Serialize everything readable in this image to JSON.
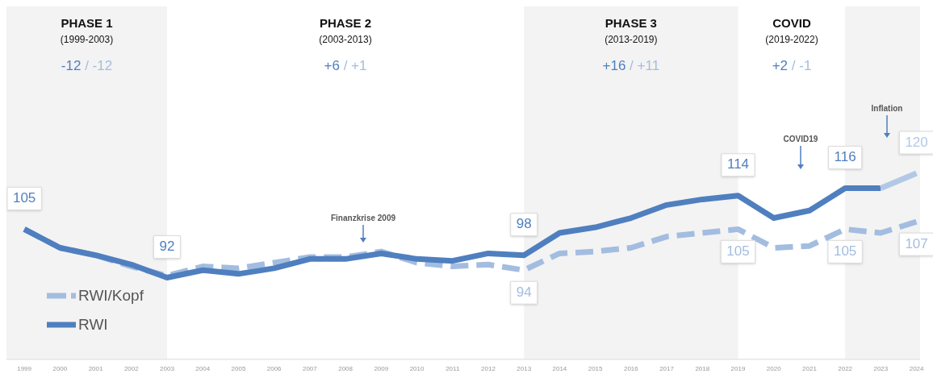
{
  "chart_data": {
    "type": "line",
    "x": [
      1999,
      2000,
      2001,
      2002,
      2003,
      2004,
      2005,
      2006,
      2007,
      2008,
      2009,
      2010,
      2011,
      2012,
      2013,
      2014,
      2015,
      2016,
      2017,
      2018,
      2019,
      2020,
      2021,
      2022,
      2023,
      2024
    ],
    "xlim": [
      1998.5,
      2024.1
    ],
    "xticks": [
      1999,
      2000,
      2001,
      2002,
      2003,
      2004,
      2005,
      2006,
      2007,
      2008,
      2009,
      2010,
      2011,
      2012,
      2013,
      2014,
      2015,
      2016,
      2017,
      2018,
      2019,
      2020,
      2021,
      2022,
      2023,
      2024
    ],
    "tick_labels": "x",
    "grid": false,
    "legend": "bottom left",
    "marker": "none",
    "series": [
      {
        "name": "RWI/Kopf",
        "color": "#a3bde0",
        "line_style": "dashed",
        "values": [
          105,
          100,
          98,
          95,
          92.5,
          95,
          94.5,
          96,
          97.5,
          97.5,
          99,
          96,
          95,
          95.5,
          94,
          98.5,
          99,
          100,
          103,
          104,
          105,
          100,
          100.5,
          105,
          104,
          107
        ],
        "value_labels": [
          null,
          null,
          null,
          null,
          null,
          null,
          null,
          null,
          null,
          null,
          null,
          null,
          null,
          null,
          "94",
          null,
          null,
          null,
          null,
          null,
          "105",
          null,
          null,
          "105",
          null,
          "107"
        ]
      },
      {
        "name": "RWI",
        "color": "#4f7fbf",
        "line_style": "solid",
        "values": [
          105,
          100,
          98,
          95.5,
          92,
          94,
          93,
          94.5,
          97,
          97,
          98.5,
          97,
          96.5,
          98.5,
          98,
          104,
          105.5,
          108,
          111.5,
          113,
          114,
          108,
          110,
          116,
          116,
          null
        ],
        "value_labels": [
          "105",
          null,
          null,
          null,
          "92",
          null,
          null,
          null,
          null,
          null,
          null,
          null,
          null,
          null,
          "98",
          null,
          null,
          null,
          null,
          null,
          "114",
          null,
          null,
          "116",
          null,
          null
        ]
      },
      {
        "color": "#b3c8e6",
        "line_style": "solid",
        "x": [
          2023,
          2024
        ],
        "values": [
          116,
          120
        ],
        "value_labels": [
          null,
          "120"
        ]
      }
    ],
    "bands": [
      {
        "axis": "x",
        "from": 1998.5,
        "to": 2003,
        "label": "PHASE 1\n(1999-2003)\n-12 / -12",
        "color": "#f3f3f3"
      },
      {
        "axis": "x",
        "from": 2013,
        "to": 2019,
        "label": "PHASE 3\n(2013-2019)\n+16 / +11",
        "color": "#f3f3f3"
      },
      {
        "axis": "x",
        "from": 2022,
        "to": 2024.1,
        "color": "#f3f3f3"
      }
    ],
    "annotations": [
      "PHASE 2\n(2003-2013)\n+6 / +1",
      "COVID\n(2019-2022)\n+2 / -1",
      "Finanzkrise 2009",
      "COVID19",
      "Inflation"
    ]
  }
}
